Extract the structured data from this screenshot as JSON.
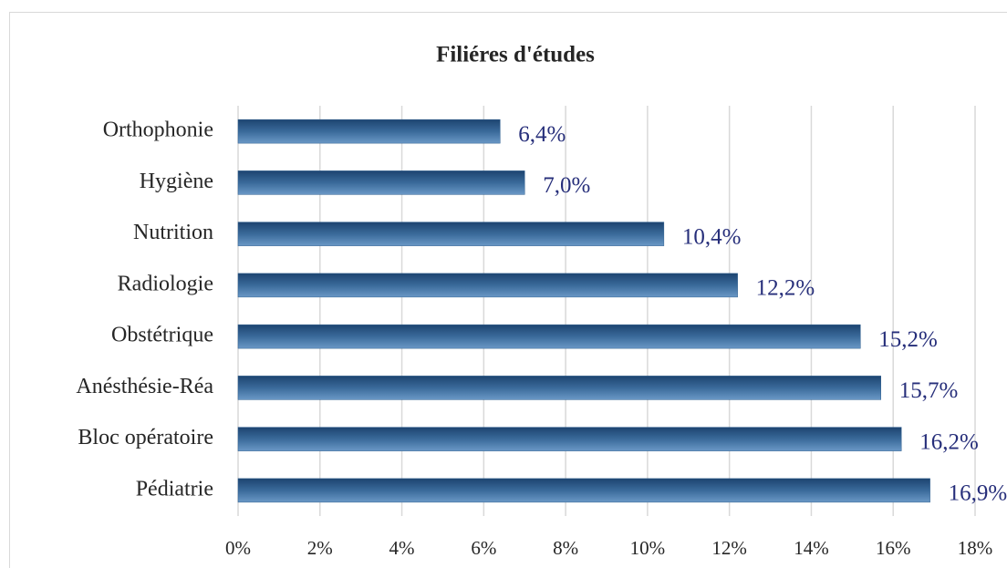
{
  "chart_data": {
    "type": "barh",
    "title": "Filiéres d'études",
    "categories": [
      "Orthophonie",
      "Hygiène",
      "Nutrition",
      "Radiologie",
      "Obstétrique",
      "Anésthésie-Réa",
      "Bloc opératoire",
      "Pédiatrie"
    ],
    "values": [
      6.4,
      7.0,
      10.4,
      12.2,
      15.2,
      15.7,
      16.2,
      16.9
    ],
    "value_labels": [
      "6,4%",
      "7,0%",
      "10,4%",
      "12,2%",
      "15,2%",
      "15,7%",
      "16,2%",
      "16,9%"
    ],
    "color": "#2f5f8f",
    "xlim": [
      0,
      18
    ],
    "xticks": [
      {
        "value": 0,
        "label": "0%"
      },
      {
        "value": 2,
        "label": "2%"
      },
      {
        "value": 4,
        "label": "4%"
      },
      {
        "value": 6,
        "label": "6%"
      },
      {
        "value": 8,
        "label": "8%"
      },
      {
        "value": 10,
        "label": "10%"
      },
      {
        "value": 12,
        "label": "12%"
      },
      {
        "value": 14,
        "label": "14%"
      },
      {
        "value": 16,
        "label": "16%"
      },
      {
        "value": 18,
        "label": "18%"
      }
    ],
    "grid": true
  }
}
